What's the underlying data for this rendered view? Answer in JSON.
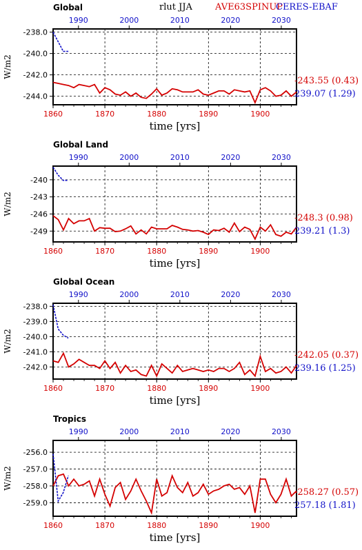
{
  "header": {
    "variable": "rlut JJA",
    "model": "AVE63SPINUP",
    "obs": "CERES-EBAF",
    "model_color": "#d40000",
    "obs_color": "#1010c8"
  },
  "chart_data": [
    {
      "type": "line",
      "title": "Global",
      "ylabel": "W/m2",
      "xlabel": "time [yrs]",
      "bottom_axis": {
        "range": [
          1860,
          1907
        ],
        "ticks": [
          "1860",
          "1870",
          "1880",
          "1890",
          "1900"
        ]
      },
      "top_axis": {
        "range": [
          1985,
          2033
        ],
        "ticks": [
          "1990",
          "2000",
          "2010",
          "2020",
          "2030"
        ]
      },
      "ylim": [
        -244.8,
        -237.7
      ],
      "yticks": [
        "-238.0",
        "-240.0",
        "-242.0",
        "-244.0"
      ],
      "grid": true,
      "model_label": "-243.55 (0.43)",
      "obs_label": "239.07 (1.29)",
      "series": [
        {
          "name": "AVE63SPINUP",
          "color": "#d40000",
          "axis": "bottom",
          "x": [
            1860,
            1861,
            1862,
            1863,
            1864,
            1865,
            1866,
            1867,
            1868,
            1869,
            1870,
            1871,
            1872,
            1873,
            1874,
            1875,
            1876,
            1877,
            1878,
            1879,
            1880,
            1881,
            1882,
            1883,
            1884,
            1885,
            1886,
            1887,
            1888,
            1889,
            1890,
            1891,
            1892,
            1893,
            1894,
            1895,
            1896,
            1897,
            1898,
            1899,
            1900,
            1901,
            1902,
            1903,
            1904,
            1905,
            1906,
            1907
          ],
          "y": [
            -242.7,
            -242.8,
            -242.9,
            -243.0,
            -243.2,
            -242.9,
            -243.0,
            -243.1,
            -242.9,
            -243.7,
            -243.2,
            -243.4,
            -243.8,
            -243.9,
            -243.6,
            -244.0,
            -243.7,
            -244.1,
            -244.2,
            -243.8,
            -243.3,
            -243.9,
            -243.7,
            -243.3,
            -243.4,
            -243.6,
            -243.6,
            -243.6,
            -243.4,
            -243.8,
            -243.9,
            -243.7,
            -243.5,
            -243.5,
            -243.8,
            -243.4,
            -243.5,
            -243.6,
            -243.5,
            -244.6,
            -243.4,
            -243.2,
            -243.5,
            -244.0,
            -243.9,
            -243.5,
            -244.0,
            -243.6
          ]
        },
        {
          "name": "CERES-EBAF",
          "color": "#1010c8",
          "axis": "top",
          "x": [
            1985,
            1986,
            1987,
            1988
          ],
          "y": [
            -238.0,
            -238.9,
            -239.8,
            -239.8
          ]
        }
      ]
    },
    {
      "type": "line",
      "title": "Global Land",
      "ylabel": "W/m2",
      "xlabel": "time [yrs]",
      "bottom_axis": {
        "range": [
          1860,
          1907
        ],
        "ticks": [
          "1860",
          "1870",
          "1880",
          "1890",
          "1900"
        ]
      },
      "top_axis": {
        "range": [
          1985,
          2033
        ],
        "ticks": [
          "1990",
          "2000",
          "2010",
          "2020",
          "2030"
        ]
      },
      "ylim": [
        -250.9,
        -237.6
      ],
      "yticks": [
        "-240",
        "-243",
        "-246",
        "-249"
      ],
      "grid": true,
      "model_label": "-248.3 (0.98)",
      "obs_label": "239.21 (1.3)",
      "series": [
        {
          "name": "AVE63SPINUP",
          "color": "#d40000",
          "axis": "bottom",
          "x": [
            1860,
            1861,
            1862,
            1863,
            1864,
            1865,
            1866,
            1867,
            1868,
            1869,
            1870,
            1871,
            1872,
            1873,
            1874,
            1875,
            1876,
            1877,
            1878,
            1879,
            1880,
            1881,
            1882,
            1883,
            1884,
            1885,
            1886,
            1887,
            1888,
            1889,
            1890,
            1891,
            1892,
            1893,
            1894,
            1895,
            1896,
            1897,
            1898,
            1899,
            1900,
            1901,
            1902,
            1903,
            1904,
            1905,
            1906,
            1907
          ],
          "y": [
            -246.3,
            -247.0,
            -248.8,
            -246.8,
            -247.7,
            -247.2,
            -247.2,
            -246.8,
            -249.0,
            -248.4,
            -248.5,
            -248.5,
            -249.1,
            -249.0,
            -248.6,
            -248.1,
            -249.5,
            -248.8,
            -249.5,
            -248.3,
            -248.6,
            -248.6,
            -248.6,
            -248.0,
            -248.3,
            -248.7,
            -248.8,
            -249.0,
            -248.9,
            -249.2,
            -249.6,
            -248.8,
            -248.9,
            -248.5,
            -249.2,
            -247.6,
            -249.1,
            -248.3,
            -248.7,
            -250.4,
            -248.3,
            -249.0,
            -247.9,
            -249.6,
            -249.9,
            -249.2,
            -249.5,
            -248.3
          ]
        },
        {
          "name": "CERES-EBAF",
          "color": "#1010c8",
          "axis": "top",
          "x": [
            1985,
            1986,
            1987,
            1988
          ],
          "y": [
            -237.8,
            -239.2,
            -240.1,
            -240.1
          ]
        }
      ]
    },
    {
      "type": "line",
      "title": "Global Ocean",
      "ylabel": "W/m2",
      "xlabel": "time [yrs]",
      "bottom_axis": {
        "range": [
          1860,
          1907
        ],
        "ticks": [
          "1860",
          "1870",
          "1880",
          "1890",
          "1900"
        ]
      },
      "top_axis": {
        "range": [
          1985,
          2033
        ],
        "ticks": [
          "1990",
          "2000",
          "2010",
          "2020",
          "2030"
        ]
      },
      "ylim": [
        -242.8,
        -237.8
      ],
      "yticks": [
        "-238.0",
        "-239.0",
        "-240.0",
        "-241.0",
        "-242.0"
      ],
      "grid": true,
      "model_label": "-242.05 (0.37)",
      "obs_label": "239.16 (1.25)",
      "series": [
        {
          "name": "AVE63SPINUP",
          "color": "#d40000",
          "axis": "bottom",
          "x": [
            1860,
            1861,
            1862,
            1863,
            1864,
            1865,
            1866,
            1867,
            1868,
            1869,
            1870,
            1871,
            1872,
            1873,
            1874,
            1875,
            1876,
            1877,
            1878,
            1879,
            1880,
            1881,
            1882,
            1883,
            1884,
            1885,
            1886,
            1887,
            1888,
            1889,
            1890,
            1891,
            1892,
            1893,
            1894,
            1895,
            1896,
            1897,
            1898,
            1899,
            1900,
            1901,
            1902,
            1903,
            1904,
            1905,
            1906,
            1907
          ],
          "y": [
            -241.6,
            -241.7,
            -241.1,
            -242.0,
            -241.8,
            -241.5,
            -241.7,
            -241.9,
            -241.9,
            -242.1,
            -241.6,
            -242.1,
            -241.7,
            -242.4,
            -241.9,
            -242.3,
            -242.2,
            -242.5,
            -242.6,
            -241.9,
            -242.6,
            -241.8,
            -242.1,
            -242.4,
            -241.9,
            -242.3,
            -242.2,
            -242.1,
            -242.2,
            -242.3,
            -242.2,
            -242.3,
            -242.1,
            -242.1,
            -242.3,
            -242.1,
            -241.7,
            -242.5,
            -242.2,
            -242.6,
            -241.3,
            -242.3,
            -242.1,
            -242.4,
            -242.3,
            -242.0,
            -242.4,
            -241.9
          ]
        },
        {
          "name": "CERES-EBAF",
          "color": "#1010c8",
          "axis": "top",
          "x": [
            1985,
            1986,
            1987,
            1988
          ],
          "y": [
            -237.9,
            -239.5,
            -239.9,
            -240.1
          ]
        }
      ]
    },
    {
      "type": "line",
      "title": "Tropics",
      "ylabel": "W/m2",
      "xlabel": "time [yrs]",
      "bottom_axis": {
        "range": [
          1860,
          1907
        ],
        "ticks": [
          "1860",
          "1870",
          "1880",
          "1890",
          "1900"
        ]
      },
      "top_axis": {
        "range": [
          1985,
          2033
        ],
        "ticks": [
          "1990",
          "2000",
          "2010",
          "2020",
          "2030"
        ]
      },
      "ylim": [
        -259.8,
        -255.3
      ],
      "yticks": [
        "-256.0",
        "-257.0",
        "-258.0",
        "-259.0"
      ],
      "grid": true,
      "model_label": "-258.27 (0.57)",
      "obs_label": "257.18 (1.81)",
      "series": [
        {
          "name": "AVE63SPINUP",
          "color": "#d40000",
          "axis": "bottom",
          "x": [
            1860,
            1861,
            1862,
            1863,
            1864,
            1865,
            1866,
            1867,
            1868,
            1869,
            1870,
            1871,
            1872,
            1873,
            1874,
            1875,
            1876,
            1877,
            1878,
            1879,
            1880,
            1881,
            1882,
            1883,
            1884,
            1885,
            1886,
            1887,
            1888,
            1889,
            1890,
            1891,
            1892,
            1893,
            1894,
            1895,
            1896,
            1897,
            1898,
            1899,
            1900,
            1901,
            1902,
            1903,
            1904,
            1905,
            1906,
            1907
          ],
          "y": [
            -258.0,
            -257.4,
            -257.3,
            -258.0,
            -257.6,
            -258.0,
            -257.9,
            -257.7,
            -258.6,
            -257.6,
            -258.5,
            -259.2,
            -258.1,
            -257.8,
            -258.8,
            -258.3,
            -257.6,
            -258.3,
            -258.9,
            -259.6,
            -257.6,
            -258.6,
            -258.4,
            -257.4,
            -258.1,
            -258.4,
            -257.8,
            -258.6,
            -258.4,
            -257.9,
            -258.5,
            -258.3,
            -258.2,
            -258.0,
            -257.9,
            -258.2,
            -258.1,
            -258.5,
            -258.0,
            -259.6,
            -257.6,
            -257.6,
            -258.5,
            -259.0,
            -258.5,
            -257.6,
            -258.6,
            -258.3
          ]
        },
        {
          "name": "CERES-EBAF",
          "color": "#1010c8",
          "axis": "top",
          "x": [
            1985,
            1986,
            1987,
            1988
          ],
          "y": [
            -256.1,
            -258.9,
            -258.4,
            -257.4
          ]
        }
      ]
    }
  ]
}
